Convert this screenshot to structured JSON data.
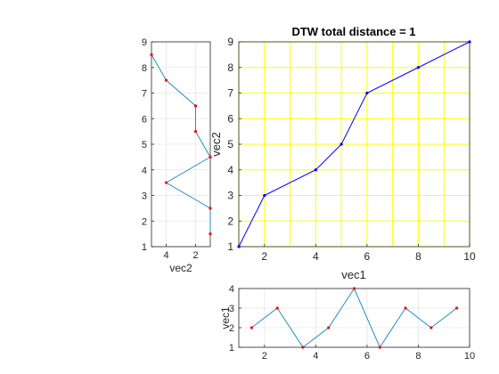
{
  "chart_data": [
    {
      "type": "line",
      "title": "DTW total distance = 1",
      "xlabel": "vec1",
      "ylabel": "vec2",
      "xlim": [
        1,
        10
      ],
      "ylim": [
        1,
        9
      ],
      "x_ticks": [
        "2",
        "4",
        "6",
        "8",
        "10"
      ],
      "y_ticks": [
        "1",
        "2",
        "3",
        "4",
        "5",
        "6",
        "7",
        "8",
        "9"
      ],
      "grid": true,
      "grid_color": "#ffff00",
      "line_color": "#0000ff",
      "series": [
        {
          "x": [
            1,
            2,
            4,
            5,
            6,
            8,
            10
          ],
          "y": [
            1,
            3,
            4,
            5,
            7,
            8,
            9
          ]
        }
      ]
    },
    {
      "type": "line",
      "title": "",
      "xlabel": "vec2",
      "ylabel": "",
      "orientation": "vertical",
      "xlim": [
        1,
        5
      ],
      "x_direction": "reversed",
      "ylim": [
        1,
        9
      ],
      "x_ticks": [
        "4",
        "2"
      ],
      "y_ticks": [
        "1",
        "2",
        "3",
        "4",
        "5",
        "6",
        "7",
        "8",
        "9"
      ],
      "grid": true,
      "line_color": "#1f8fbf",
      "marker_color": "#ff0000",
      "series": [
        {
          "value": [
            5,
            4,
            2,
            2,
            1,
            4,
            1,
            1
          ],
          "position": [
            8.5,
            7.5,
            6.5,
            5.5,
            4.5,
            3.5,
            2.5,
            1.5
          ]
        }
      ]
    },
    {
      "type": "line",
      "title": "",
      "xlabel": "",
      "ylabel": "vec1",
      "xlim": [
        1,
        10
      ],
      "ylim": [
        1,
        4
      ],
      "x_ticks": [
        "2",
        "4",
        "6",
        "8",
        "10"
      ],
      "y_ticks": [
        "1",
        "2",
        "3",
        "4"
      ],
      "grid": true,
      "line_color": "#1f8fbf",
      "marker_color": "#ff0000",
      "series": [
        {
          "x": [
            1.5,
            2.5,
            3.5,
            4.5,
            5.5,
            6.5,
            7.5,
            8.5,
            9.5
          ],
          "y": [
            2,
            3,
            1,
            2,
            4,
            1,
            3,
            2,
            3
          ]
        }
      ]
    }
  ]
}
